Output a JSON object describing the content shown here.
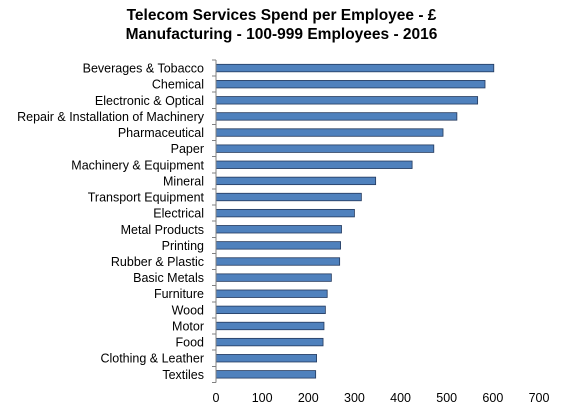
{
  "chart_data": {
    "type": "bar",
    "orientation": "horizontal",
    "title_lines": [
      "Telecom Services Spend per Employee - £",
      "Manufacturing - 100-999 Employees - 2016"
    ],
    "xlabel": "",
    "ylabel": "",
    "xlim": [
      0,
      700
    ],
    "x_ticks": [
      "0",
      "100",
      "200",
      "300",
      "400",
      "500",
      "600",
      "700"
    ],
    "grid": false,
    "legend": "none",
    "bar_color": "#4f81bd",
    "bar_edge_color": "#23395d",
    "categories": [
      "Beverages & Tobacco",
      "Chemical",
      "Electronic & Optical",
      "Repair & Installation of Machinery",
      "Pharmaceutical",
      "Paper",
      "Machinery & Equipment",
      "Mineral",
      "Transport Equipment",
      "Electrical",
      "Metal Products",
      "Printing",
      "Rubber & Plastic",
      "Basic Metals",
      "Furniture",
      "Wood",
      "Motor",
      "Food",
      "Clothing & Leather",
      "Textiles"
    ],
    "values": [
      602,
      583,
      567,
      522,
      492,
      472,
      425,
      346,
      315,
      300,
      272,
      270,
      268,
      250,
      241,
      237,
      234,
      232,
      218,
      216
    ]
  }
}
